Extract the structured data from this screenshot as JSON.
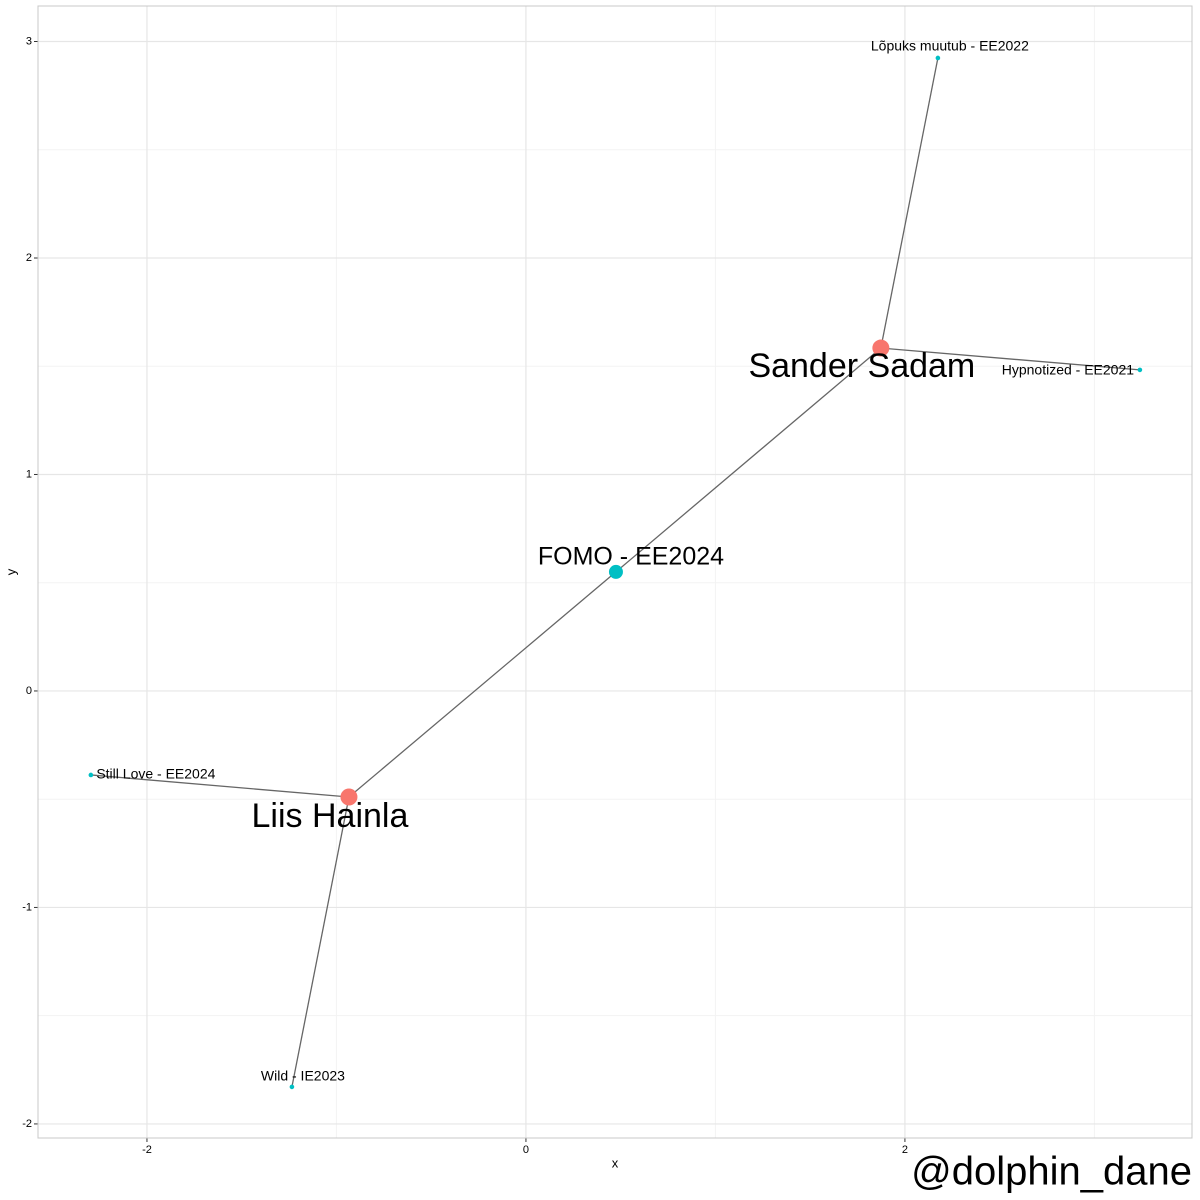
{
  "chart_data": {
    "type": "network",
    "nodes": [
      {
        "name": "Sander Sadam",
        "x": 1.873,
        "y": 1.584,
        "color": "#F8766D"
      },
      {
        "name": "Liis Hainla",
        "x": -0.934,
        "y": -0.49,
        "color": "#F8766D"
      },
      {
        "name": "FOMO - EE2024",
        "x": 0.475,
        "y": 0.55,
        "color": "#00BFC4"
      },
      {
        "name": "Lõpuks muutub - EE2022",
        "x": 2.174,
        "y": 2.924,
        "color": "#00BFC4"
      },
      {
        "name": "Hypnotized - EE2021",
        "x": 3.24,
        "y": 1.483,
        "color": "#00BFC4"
      },
      {
        "name": "Still Love - EE2024",
        "x": -2.296,
        "y": -0.388,
        "color": "#00BFC4"
      },
      {
        "name": "Wild - IE2023",
        "x": -1.235,
        "y": -1.829,
        "color": "#00BFC4"
      }
    ],
    "edges": [
      [
        0,
        3
      ],
      [
        0,
        4
      ],
      [
        0,
        2
      ],
      [
        1,
        2
      ],
      [
        1,
        5
      ],
      [
        1,
        6
      ]
    ],
    "xlabel": "x",
    "ylabel": "y",
    "caption": "@dolphin_dane",
    "xlim": [
      -2.575,
      3.515
    ],
    "ylim": [
      -2.065,
      3.164
    ],
    "xticks": [
      -2,
      0,
      2
    ],
    "yticks": [
      -2,
      -1,
      0,
      1,
      2,
      3
    ],
    "grid": true
  }
}
